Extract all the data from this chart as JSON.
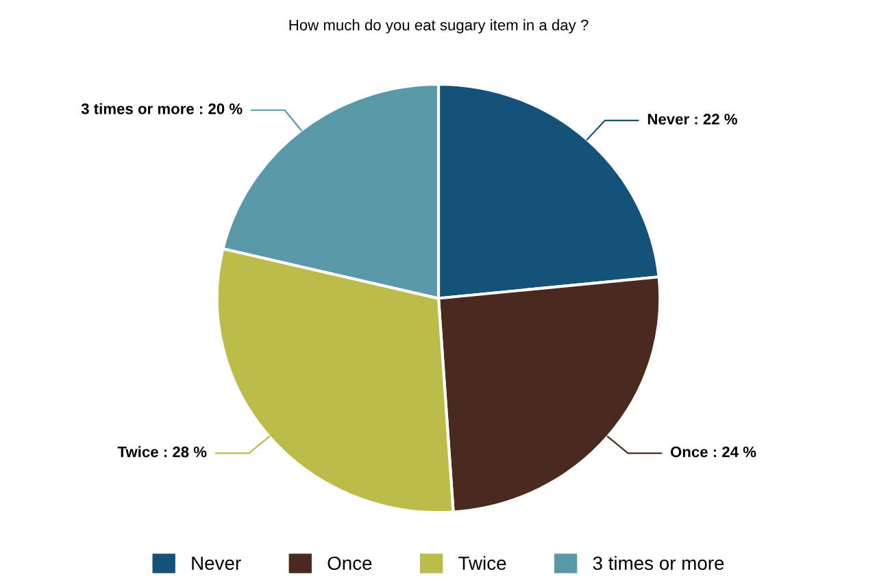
{
  "chart_data": {
    "type": "pie",
    "title": "How much do you eat sugary item in a day ?",
    "categories": [
      "Never",
      "Once",
      "Twice",
      "3 times or more"
    ],
    "values": [
      22,
      24,
      28,
      20
    ],
    "value_labels": [
      "Never : 22 %",
      "Once : 24 %",
      "Twice : 28 %",
      "3 times or more : 20 %"
    ],
    "colors": [
      "#15527a",
      "#4a2a1e",
      "#bcbc4a",
      "#5a9aa8"
    ],
    "legend": "bottom"
  }
}
